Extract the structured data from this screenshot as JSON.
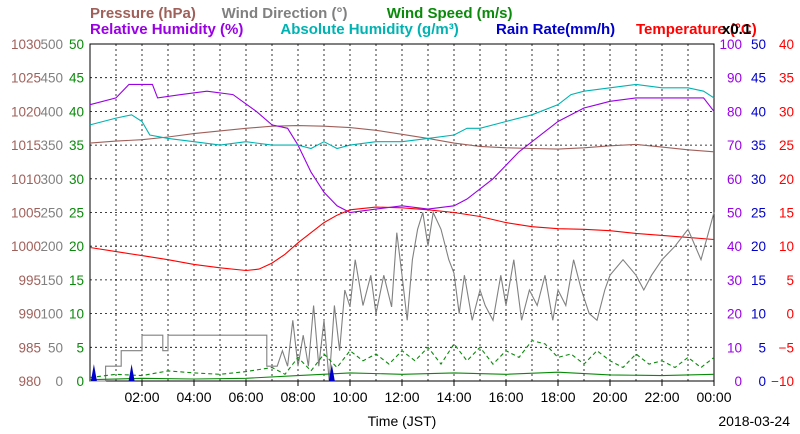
{
  "chart_data": {
    "type": "line",
    "title_rows": [
      [
        {
          "text": "Pressure (hPa)",
          "color": "#a0605a"
        },
        {
          "text": "Wind Direction (°)",
          "color": "#808080"
        },
        {
          "text": "Wind Speed (m/s)",
          "color": "#0a8a0a"
        }
      ],
      [
        {
          "text": "Relative Humidity (%)",
          "color": "#9900e6"
        },
        {
          "text": "Absolute Humidity (g/m³)",
          "color": "#00b3b3"
        },
        {
          "text": "Rain Rate(mm/h)",
          "color": "#0000cc"
        },
        {
          "text": "Temperature (°C)",
          "color": "#ff0000"
        }
      ]
    ],
    "abs_humidity_note": "x0.1",
    "xlabel": "Time (JST)",
    "date": "2018-03-24",
    "x_ticks": [
      "02:00",
      "04:00",
      "06:00",
      "08:00",
      "10:00",
      "12:00",
      "14:00",
      "16:00",
      "18:00",
      "20:00",
      "22:00",
      "00:00"
    ],
    "axes": [
      {
        "name": "Pressure (hPa)",
        "color": "#a0605a",
        "ticks": [
          "1030",
          "1025",
          "1020",
          "1015",
          "1010",
          "1005",
          "1000",
          "995",
          "990",
          "985",
          "980"
        ]
      },
      {
        "name": "Wind Direction (°)",
        "color": "#808080",
        "ticks": [
          "500",
          "450",
          "400",
          "350",
          "300",
          "250",
          "200",
          "150",
          "100",
          "50",
          "0"
        ]
      },
      {
        "name": "Wind Speed (m/s)",
        "color": "#0a8a0a",
        "ticks": [
          "50",
          "45",
          "40",
          "35",
          "30",
          "25",
          "20",
          "15",
          "10",
          "5",
          "0"
        ]
      },
      {
        "name": "Relative Humidity (%)",
        "color": "#9900e6",
        "ticks": [
          "100",
          "90",
          "80",
          "70",
          "60",
          "50",
          "40",
          "30",
          "20",
          "10",
          "0"
        ]
      },
      {
        "name": "Rain Rate(mm/h)",
        "color": "#0000cc",
        "ticks": [
          "50",
          "45",
          "40",
          "35",
          "30",
          "25",
          "20",
          "15",
          "10",
          "5",
          "0"
        ]
      },
      {
        "name": "Temperature (°C)",
        "color": "#ff0000",
        "ticks": [
          "40",
          "35",
          "30",
          "25",
          "20",
          "15",
          "10",
          "5",
          "0",
          "−5",
          "−10"
        ]
      }
    ],
    "x_range_hours": [
      0,
      24
    ],
    "grid": true,
    "series": [
      {
        "name": "Pressure (hPa)",
        "color": "#a0605a",
        "style": "solid",
        "unit_axis": "Pressure (hPa)",
        "points": [
          [
            0,
            1015.3
          ],
          [
            1,
            1015.6
          ],
          [
            2,
            1015.8
          ],
          [
            3,
            1016.2
          ],
          [
            4,
            1016.7
          ],
          [
            5,
            1017.1
          ],
          [
            6,
            1017.5
          ],
          [
            7,
            1017.8
          ],
          [
            8,
            1017.9
          ],
          [
            9,
            1017.8
          ],
          [
            10,
            1017.6
          ],
          [
            11,
            1017.2
          ],
          [
            12,
            1016.6
          ],
          [
            13,
            1016.0
          ],
          [
            14,
            1015.3
          ],
          [
            15,
            1014.8
          ],
          [
            16,
            1014.6
          ],
          [
            17,
            1014.5
          ],
          [
            18,
            1014.4
          ],
          [
            19,
            1014.6
          ],
          [
            20,
            1014.9
          ],
          [
            21,
            1015.1
          ],
          [
            22,
            1014.7
          ],
          [
            23,
            1014.3
          ],
          [
            24,
            1014.0
          ]
        ]
      },
      {
        "name": "Relative Humidity (%)",
        "color": "#9900e6",
        "style": "solid",
        "unit_axis": "Relative Humidity (%)",
        "points": [
          [
            0,
            82
          ],
          [
            1,
            84
          ],
          [
            1.5,
            88
          ],
          [
            2.4,
            88
          ],
          [
            2.6,
            84
          ],
          [
            3.5,
            85
          ],
          [
            4.5,
            86
          ],
          [
            5.5,
            85
          ],
          [
            6.4,
            80
          ],
          [
            7,
            76
          ],
          [
            7.6,
            75
          ],
          [
            8,
            70
          ],
          [
            8.5,
            62
          ],
          [
            9,
            56
          ],
          [
            9.5,
            52
          ],
          [
            10,
            50
          ],
          [
            11,
            51
          ],
          [
            12,
            52
          ],
          [
            13,
            51
          ],
          [
            14,
            52
          ],
          [
            14.5,
            54
          ],
          [
            15,
            57
          ],
          [
            15.5,
            60
          ],
          [
            16,
            64
          ],
          [
            16.5,
            68
          ],
          [
            17,
            71
          ],
          [
            17.5,
            74
          ],
          [
            18,
            77
          ],
          [
            18.5,
            79
          ],
          [
            19,
            81
          ],
          [
            19.5,
            82
          ],
          [
            20,
            83
          ],
          [
            21,
            84
          ],
          [
            22,
            84
          ],
          [
            23,
            84
          ],
          [
            23.6,
            84
          ],
          [
            24,
            80
          ]
        ]
      },
      {
        "name": "Absolute Humidity (g/m³)",
        "color": "#00b3b3",
        "style": "solid",
        "unit_axis": "Relative Humidity (%)",
        "points": [
          [
            0,
            76
          ],
          [
            0.5,
            77
          ],
          [
            1,
            78
          ],
          [
            1.6,
            79
          ],
          [
            2,
            77
          ],
          [
            2.3,
            73
          ],
          [
            3,
            72
          ],
          [
            4,
            71
          ],
          [
            5,
            70
          ],
          [
            6,
            71
          ],
          [
            7,
            70
          ],
          [
            8,
            70
          ],
          [
            8.5,
            69
          ],
          [
            9,
            71
          ],
          [
            9.5,
            69
          ],
          [
            10,
            70
          ],
          [
            11,
            71
          ],
          [
            12,
            71
          ],
          [
            13,
            72
          ],
          [
            14,
            73
          ],
          [
            14.5,
            75
          ],
          [
            15,
            75
          ],
          [
            16,
            77
          ],
          [
            17,
            79
          ],
          [
            18,
            82
          ],
          [
            18.5,
            85
          ],
          [
            19,
            86
          ],
          [
            20,
            87
          ],
          [
            21,
            88
          ],
          [
            22,
            87
          ],
          [
            23,
            87
          ],
          [
            23.6,
            86
          ],
          [
            24,
            84
          ]
        ]
      },
      {
        "name": "Temperature (°C)",
        "color": "#ff0000",
        "style": "solid",
        "unit_axis": "Temperature (°C)",
        "points": [
          [
            0,
            9.8
          ],
          [
            1,
            9.2
          ],
          [
            2,
            8.6
          ],
          [
            3,
            8.0
          ],
          [
            4,
            7.3
          ],
          [
            5,
            6.8
          ],
          [
            6,
            6.4
          ],
          [
            6.5,
            6.6
          ],
          [
            7,
            7.5
          ],
          [
            7.5,
            8.8
          ],
          [
            8,
            10.5
          ],
          [
            8.5,
            12.0
          ],
          [
            9,
            13.5
          ],
          [
            9.5,
            14.6
          ],
          [
            10,
            15.4
          ],
          [
            11,
            15.8
          ],
          [
            12,
            15.7
          ],
          [
            13,
            15.4
          ],
          [
            14,
            15.0
          ],
          [
            15,
            14.4
          ],
          [
            16,
            13.5
          ],
          [
            17,
            12.9
          ],
          [
            18,
            12.6
          ],
          [
            19,
            12.5
          ],
          [
            20,
            12.3
          ],
          [
            21,
            11.9
          ],
          [
            22,
            11.6
          ],
          [
            23,
            11.3
          ],
          [
            24,
            11.0
          ]
        ]
      },
      {
        "name": "Wind Direction (°)",
        "color": "#808080",
        "style": "solid",
        "unit_axis": "Wind Direction (°)",
        "points": [
          [
            0,
            0
          ],
          [
            0.6,
            0
          ],
          [
            0.6,
            22
          ],
          [
            1.2,
            22
          ],
          [
            1.2,
            45
          ],
          [
            2.0,
            45
          ],
          [
            2.0,
            68
          ],
          [
            2.8,
            68
          ],
          [
            2.8,
            45
          ],
          [
            3.0,
            45
          ],
          [
            3.0,
            68
          ],
          [
            6.8,
            68
          ],
          [
            6.8,
            22
          ],
          [
            7.2,
            22
          ],
          [
            7.4,
            45
          ],
          [
            7.6,
            22
          ],
          [
            7.8,
            90
          ],
          [
            8.0,
            22
          ],
          [
            8.2,
            68
          ],
          [
            8.4,
            22
          ],
          [
            8.6,
            112
          ],
          [
            8.8,
            22
          ],
          [
            9.0,
            90
          ],
          [
            9.2,
            0
          ],
          [
            9.4,
            112
          ],
          [
            9.6,
            45
          ],
          [
            9.8,
            135
          ],
          [
            10.0,
            110
          ],
          [
            10.2,
            180
          ],
          [
            10.5,
            112
          ],
          [
            10.8,
            157
          ],
          [
            11.0,
            100
          ],
          [
            11.3,
            157
          ],
          [
            11.6,
            110
          ],
          [
            11.8,
            220
          ],
          [
            12.0,
            157
          ],
          [
            12.2,
            90
          ],
          [
            12.4,
            180
          ],
          [
            12.6,
            225
          ],
          [
            12.8,
            250
          ],
          [
            13.0,
            200
          ],
          [
            13.2,
            250
          ],
          [
            13.5,
            225
          ],
          [
            13.8,
            180
          ],
          [
            14.0,
            160
          ],
          [
            14.2,
            100
          ],
          [
            14.4,
            157
          ],
          [
            14.7,
            90
          ],
          [
            15.0,
            135
          ],
          [
            15.2,
            112
          ],
          [
            15.5,
            90
          ],
          [
            15.8,
            157
          ],
          [
            16.0,
            112
          ],
          [
            16.3,
            180
          ],
          [
            16.6,
            90
          ],
          [
            16.9,
            135
          ],
          [
            17.2,
            112
          ],
          [
            17.5,
            157
          ],
          [
            17.8,
            90
          ],
          [
            18.0,
            135
          ],
          [
            18.3,
            112
          ],
          [
            18.6,
            180
          ],
          [
            18.9,
            135
          ],
          [
            19.2,
            100
          ],
          [
            19.5,
            90
          ],
          [
            19.8,
            135
          ],
          [
            20.0,
            157
          ],
          [
            20.5,
            180
          ],
          [
            21.0,
            157
          ],
          [
            21.3,
            135
          ],
          [
            21.6,
            157
          ],
          [
            22.0,
            180
          ],
          [
            22.5,
            200
          ],
          [
            23.0,
            225
          ],
          [
            23.5,
            180
          ],
          [
            24,
            250
          ]
        ]
      },
      {
        "name": "Wind Speed (m/s)",
        "color": "#0a8a0a",
        "style": "dashed",
        "unit_axis": "Wind Speed (m/s)",
        "points": [
          [
            0,
            0.5
          ],
          [
            1,
            1.0
          ],
          [
            2,
            0.8
          ],
          [
            3,
            1.5
          ],
          [
            4,
            1.2
          ],
          [
            5,
            1.0
          ],
          [
            6,
            1.4
          ],
          [
            7,
            2.0
          ],
          [
            7.5,
            1.0
          ],
          [
            8,
            3.5
          ],
          [
            8.5,
            1.5
          ],
          [
            9,
            4.0
          ],
          [
            9.5,
            2.0
          ],
          [
            10,
            4.5
          ],
          [
            10.5,
            3.0
          ],
          [
            11,
            4.0
          ],
          [
            11.5,
            2.5
          ],
          [
            12,
            4.5
          ],
          [
            12.5,
            3.0
          ],
          [
            13,
            5.0
          ],
          [
            13.5,
            2.5
          ],
          [
            14,
            5.5
          ],
          [
            14.5,
            3.0
          ],
          [
            15,
            5.0
          ],
          [
            15.5,
            2.5
          ],
          [
            16,
            4.5
          ],
          [
            16.5,
            3.5
          ],
          [
            17,
            6.0
          ],
          [
            17.5,
            5.5
          ],
          [
            18,
            3.5
          ],
          [
            18.5,
            4.0
          ],
          [
            19,
            2.5
          ],
          [
            19.5,
            4.5
          ],
          [
            20,
            3.0
          ],
          [
            20.5,
            2.0
          ],
          [
            21,
            4.0
          ],
          [
            21.5,
            2.5
          ],
          [
            22,
            3.0
          ],
          [
            22.5,
            2.0
          ],
          [
            23,
            3.5
          ],
          [
            23.5,
            2.0
          ],
          [
            24,
            3.5
          ]
        ]
      },
      {
        "name": "Wind Speed (m/s)",
        "color": "#0a8a0a",
        "style": "solid",
        "unit_axis": "Wind Speed (m/s)",
        "points": [
          [
            0,
            0.2
          ],
          [
            2,
            0.4
          ],
          [
            4,
            0.3
          ],
          [
            6,
            0.4
          ],
          [
            8,
            0.8
          ],
          [
            10,
            1.2
          ],
          [
            12,
            1.0
          ],
          [
            14,
            1.2
          ],
          [
            16,
            1.0
          ],
          [
            18,
            1.3
          ],
          [
            20,
            0.9
          ],
          [
            22,
            0.8
          ],
          [
            24,
            1.0
          ]
        ]
      },
      {
        "name": "Rain Rate(mm/h)",
        "color": "#0000cc",
        "style": "bars",
        "unit_axis": "Rain Rate(mm/h)",
        "points": [
          [
            0.15,
            2.5
          ],
          [
            1.6,
            2.5
          ],
          [
            9.3,
            2.5
          ]
        ]
      }
    ]
  }
}
